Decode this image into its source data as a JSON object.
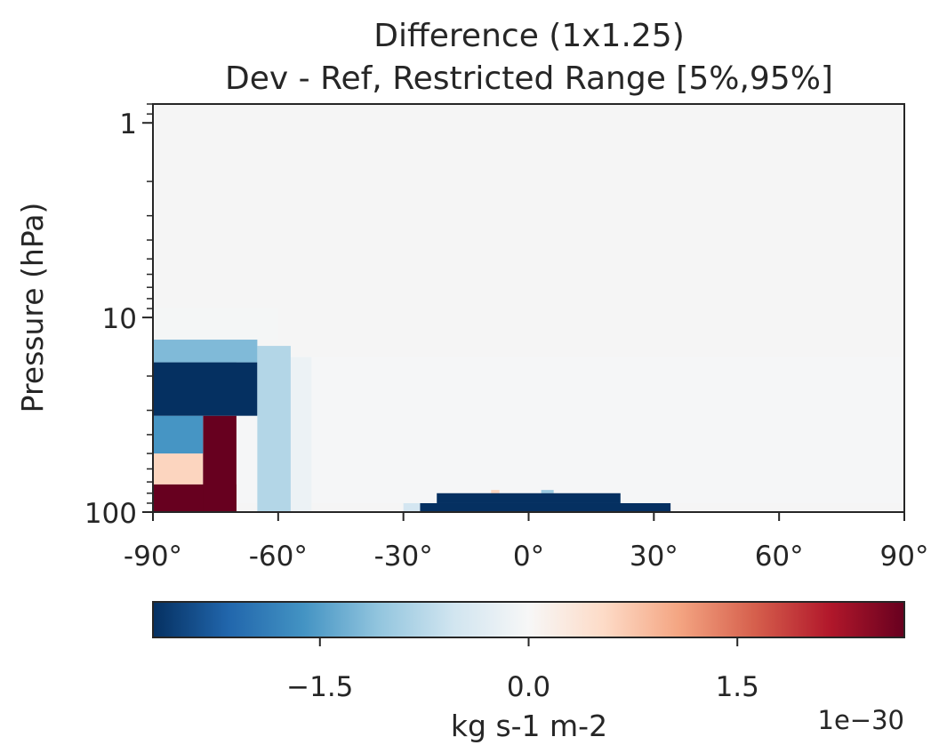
{
  "chart_data": {
    "type": "heatmap",
    "title": "Difference (1x1.25)",
    "subtitle": "Dev - Ref, Restricted Range [5%,95%]",
    "xlabel": "",
    "ylabel": "Pressure (hPa)",
    "x_range": [
      -90,
      90
    ],
    "y_range": [
      100,
      0.8
    ],
    "y_scale": "log",
    "x_ticks": [
      -90,
      -60,
      -30,
      0,
      30,
      60,
      90
    ],
    "x_tick_labels": [
      "-90°",
      "-60°",
      "-30°",
      "0°",
      "30°",
      "60°",
      "90°"
    ],
    "y_ticks": [
      1,
      10,
      100
    ],
    "y_tick_labels": [
      "1",
      "10",
      "100"
    ],
    "colormap": "RdBu_r",
    "background_color": "#f5f5f5",
    "colorbar": {
      "orientation": "horizontal",
      "range": [
        -2.7,
        2.7
      ],
      "ticks": [
        -1.5,
        0.0,
        1.5
      ],
      "tick_labels": [
        "−1.5",
        "0.0",
        "1.5"
      ],
      "label": "kg s-1 m-2",
      "offset_label": "1e−30",
      "stops": [
        "#053061",
        "#2166ac",
        "#4393c3",
        "#92c5de",
        "#d1e5f0",
        "#f7f7f7",
        "#fddbc7",
        "#f4a582",
        "#d6604d",
        "#b2182b",
        "#67001f"
      ]
    },
    "regions": [
      {
        "lon": [
          -90,
          -65
        ],
        "p": [
          13,
          17
        ],
        "value": -1.2
      },
      {
        "lon": [
          -70,
          -65
        ],
        "p": [
          13,
          17
        ],
        "value": -0.3
      },
      {
        "lon": [
          -65,
          -57
        ],
        "p": [
          14,
          100
        ],
        "value": -0.8
      },
      {
        "lon": [
          -90,
          -65
        ],
        "p": [
          17,
          32
        ],
        "value": -2.7
      },
      {
        "lon": [
          -90,
          -78
        ],
        "p": [
          32,
          50
        ],
        "value": -1.6
      },
      {
        "lon": [
          -78,
          -70
        ],
        "p": [
          32,
          100
        ],
        "value": 2.7
      },
      {
        "lon": [
          -90,
          -78
        ],
        "p": [
          50,
          72
        ],
        "value": 0.6
      },
      {
        "lon": [
          -90,
          -70
        ],
        "p": [
          72,
          100
        ],
        "value": 2.7
      },
      {
        "lon": [
          -57,
          -52
        ],
        "p": [
          16,
          100
        ],
        "value": -0.15
      },
      {
        "lon": [
          -90,
          -60
        ],
        "p": [
          9,
          13
        ],
        "value": -0.04
      },
      {
        "lon": [
          -22,
          22
        ],
        "p": [
          80,
          90
        ],
        "value": -2.7
      },
      {
        "lon": [
          -26,
          34
        ],
        "p": [
          90,
          100
        ],
        "value": -2.7
      },
      {
        "lon": [
          -30,
          -26
        ],
        "p": [
          90,
          100
        ],
        "value": -0.5
      },
      {
        "lon": [
          -9,
          -7
        ],
        "p": [
          77,
          80
        ],
        "value": 0.6
      },
      {
        "lon": [
          3,
          6
        ],
        "p": [
          77,
          80
        ],
        "value": -1.0
      },
      {
        "lon": [
          -90,
          90
        ],
        "p": [
          16,
          90
        ],
        "value": -0.03
      }
    ]
  }
}
